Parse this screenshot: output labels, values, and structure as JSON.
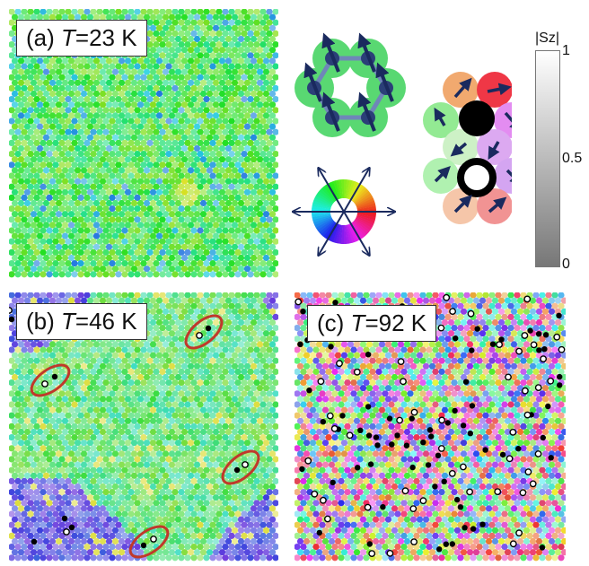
{
  "panels": [
    {
      "id": "a",
      "label_prefix": "(a) ",
      "label_T": "T",
      "label_rest": "=23 K",
      "temperature_K": 23
    },
    {
      "id": "b",
      "label_prefix": "(b) ",
      "label_T": "T",
      "label_rest": "=46 K",
      "temperature_K": 46
    },
    {
      "id": "c",
      "label_prefix": "(c) ",
      "label_T": "T",
      "label_rest": "=92 K",
      "temperature_K": 92
    }
  ],
  "colorbar": {
    "title": "|Sz|",
    "ticks": [
      "0",
      "0.5",
      "1"
    ],
    "range": [
      0,
      1
    ],
    "gradient": [
      "#777777",
      "#ffffff"
    ]
  },
  "colors": {
    "vortex_fill": "#000000",
    "antivortex_fill": "#ffffff",
    "ellipse_stroke": "#c0392b",
    "arrow": "#1a2a5e"
  }
}
